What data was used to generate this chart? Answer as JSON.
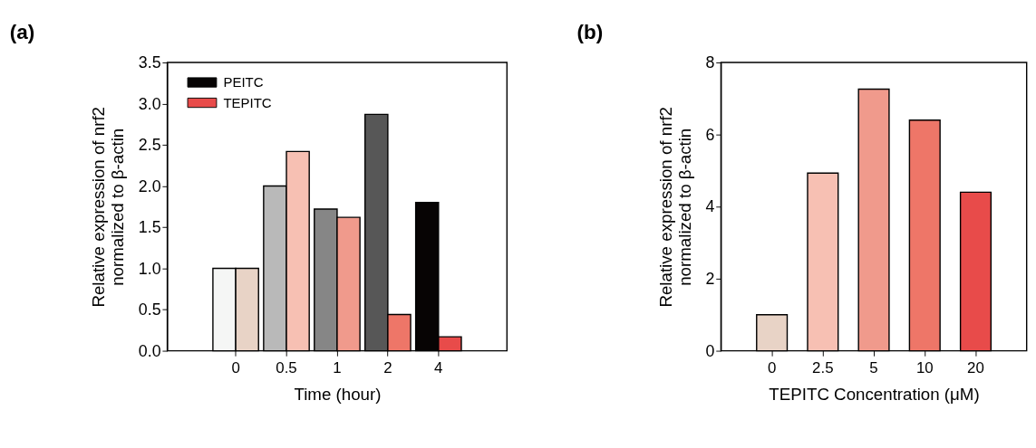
{
  "chart_data": [
    {
      "type": "bar",
      "title": "(a)",
      "xlabel": "Time (hour)",
      "ylabel": "Relative expression of nrf2\nnormalized to β-actin",
      "categories": [
        "0",
        "0.5",
        "1",
        "2",
        "4"
      ],
      "series": [
        {
          "name": "PEITC",
          "color": "#070404",
          "colors": [
            "#f5f6f5",
            "#b9b9b9",
            "#868686",
            "#575757",
            "#070404"
          ],
          "values": [
            1.0,
            2.0,
            1.72,
            2.87,
            1.8
          ]
        },
        {
          "name": "TEPITC",
          "color": "#e84b4a",
          "colors": [
            "#e8d3c6",
            "#f7c0b3",
            "#f09a8c",
            "#ee7668",
            "#e84b4a"
          ],
          "values": [
            1.0,
            2.42,
            1.62,
            0.44,
            0.17
          ]
        }
      ],
      "ylim": [
        0,
        3.5
      ],
      "yticks": [
        {
          "value": 0,
          "label": "0.0"
        },
        0.5,
        {
          "value": 1,
          "label": "1.0"
        },
        1.5,
        {
          "value": 2,
          "label": "2.0"
        },
        2.5,
        {
          "value": 3,
          "label": "3.0"
        },
        3.5
      ],
      "legend": "top left",
      "grid": false
    },
    {
      "type": "bar",
      "title": "(b)",
      "xlabel": "TEPITC Concentration (μM)",
      "ylabel": "Relative expression of nrf2\nnormalized to β-actin",
      "categories": [
        "0",
        "2.5",
        "5",
        "10",
        "20"
      ],
      "values": [
        1.0,
        4.93,
        7.26,
        6.4,
        4.4
      ],
      "colors": [
        "#e8d3c6",
        "#f7c0b3",
        "#f09a8c",
        "#ee7668",
        "#e84b4a"
      ],
      "ylim": [
        0,
        8
      ],
      "yticks": [
        0,
        2,
        4,
        6,
        8
      ],
      "grid": false
    }
  ]
}
